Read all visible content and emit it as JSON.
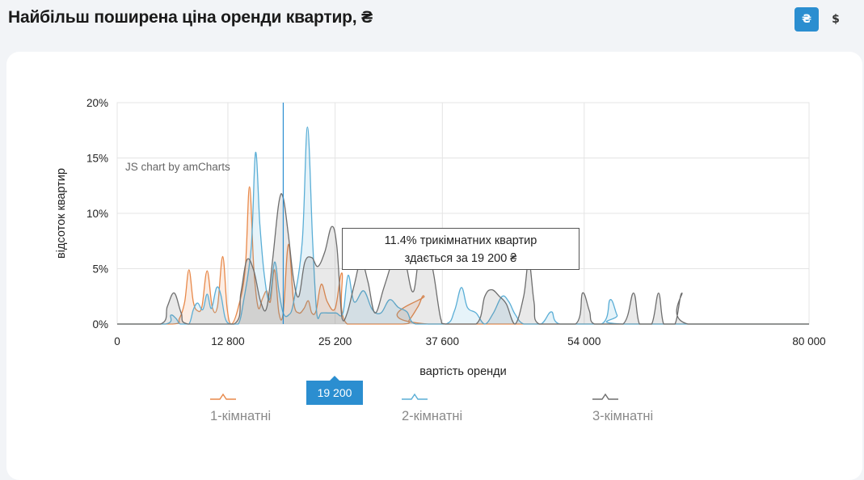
{
  "header": {
    "title": "Найбільш поширена ціна оренди квартир, ₴",
    "currency_buttons": [
      {
        "label": "₴",
        "active": true
      },
      {
        "label": "$",
        "active": false
      }
    ]
  },
  "watermark": "JS chart by amCharts",
  "tooltip": {
    "line1": "11.4% трикімнатних квартир",
    "line2": "здається за 19 200 ₴"
  },
  "cursor": {
    "x": 19200,
    "label": "19 200"
  },
  "chart_data": {
    "type": "area",
    "xlabel": "вартість оренди",
    "ylabel": "відсоток квартир",
    "xlim": [
      0,
      80000
    ],
    "ylim": [
      0,
      20
    ],
    "x_ticks": [
      0,
      12800,
      25200,
      37600,
      54000,
      80000
    ],
    "x_tick_labels": [
      "0",
      "12 800",
      "25 200",
      "37 600",
      "54 000",
      "80 000"
    ],
    "y_ticks": [
      0,
      5,
      10,
      15,
      20
    ],
    "y_tick_labels": [
      "0%",
      "5%",
      "10%",
      "15%",
      "20%"
    ],
    "grid": true,
    "legend_position": "bottom",
    "series": [
      {
        "name": "1-кімнатні",
        "color": "#e8894a",
        "points": [
          [
            0,
            0
          ],
          [
            6400,
            0
          ],
          [
            7200,
            0.5
          ],
          [
            7800,
            2
          ],
          [
            8300,
            4.9
          ],
          [
            8800,
            2
          ],
          [
            9300,
            1.2
          ],
          [
            9800,
            1.6
          ],
          [
            10400,
            4.8
          ],
          [
            11000,
            1.5
          ],
          [
            11600,
            1.6
          ],
          [
            12200,
            6.1
          ],
          [
            12700,
            1.5
          ],
          [
            13200,
            0
          ],
          [
            14000,
            1.5
          ],
          [
            14800,
            5
          ],
          [
            15300,
            12.4
          ],
          [
            15800,
            5
          ],
          [
            16300,
            1.5
          ],
          [
            16800,
            2.3
          ],
          [
            17300,
            3
          ],
          [
            17700,
            2
          ],
          [
            18200,
            4.9
          ],
          [
            18700,
            1
          ],
          [
            19200,
            1
          ],
          [
            19800,
            7.2
          ],
          [
            20400,
            2
          ],
          [
            21000,
            1
          ],
          [
            21600,
            1.4
          ],
          [
            22100,
            2.1
          ],
          [
            22500,
            1
          ],
          [
            23000,
            1.2
          ],
          [
            23600,
            3.6
          ],
          [
            24300,
            2
          ],
          [
            25200,
            1.4
          ],
          [
            26000,
            4.6
          ],
          [
            26600,
            0
          ],
          [
            33000,
            0
          ],
          [
            33800,
            0.4
          ],
          [
            34800,
            1.6
          ],
          [
            35500,
            2.5
          ],
          [
            36000,
            0
          ],
          [
            80000,
            0
          ]
        ]
      },
      {
        "name": "2-кімнатні",
        "color": "#5aaed6",
        "points": [
          [
            0,
            0
          ],
          [
            5600,
            0
          ],
          [
            6200,
            0.8
          ],
          [
            6800,
            0.5
          ],
          [
            7300,
            0
          ],
          [
            8300,
            0
          ],
          [
            8800,
            1.3
          ],
          [
            9300,
            1.9
          ],
          [
            9900,
            1.3
          ],
          [
            10400,
            2.7
          ],
          [
            10900,
            1.4
          ],
          [
            11500,
            3.3
          ],
          [
            12000,
            2.6
          ],
          [
            12500,
            0.5
          ],
          [
            13100,
            0
          ],
          [
            14000,
            0
          ],
          [
            14600,
            2
          ],
          [
            15500,
            7
          ],
          [
            16000,
            15.5
          ],
          [
            16500,
            9
          ],
          [
            17000,
            4.5
          ],
          [
            17600,
            2.2
          ],
          [
            18200,
            5.6
          ],
          [
            18700,
            3
          ],
          [
            19200,
            1
          ],
          [
            19800,
            0.8
          ],
          [
            20400,
            2
          ],
          [
            21400,
            7.5
          ],
          [
            22000,
            17.8
          ],
          [
            22600,
            7.5
          ],
          [
            23100,
            0.8
          ],
          [
            23600,
            1
          ],
          [
            24500,
            1
          ],
          [
            25300,
            1
          ],
          [
            26100,
            1
          ],
          [
            26700,
            4.4
          ],
          [
            27400,
            2
          ],
          [
            28500,
            3
          ],
          [
            29500,
            1.3
          ],
          [
            30500,
            1
          ],
          [
            31500,
            2.2
          ],
          [
            32500,
            1.5
          ],
          [
            33500,
            1.1
          ],
          [
            34500,
            0
          ],
          [
            38000,
            0
          ],
          [
            39000,
            1.2
          ],
          [
            39800,
            3.3
          ],
          [
            40500,
            1.5
          ],
          [
            41500,
            1
          ],
          [
            42500,
            0
          ],
          [
            43500,
            1
          ],
          [
            44500,
            2.5
          ],
          [
            45300,
            2
          ],
          [
            46000,
            0.9
          ],
          [
            47000,
            0
          ],
          [
            49000,
            0
          ],
          [
            50200,
            1.1
          ],
          [
            51200,
            0
          ],
          [
            56000,
            0
          ],
          [
            57000,
            2.2
          ],
          [
            57800,
            0.8
          ],
          [
            58500,
            0
          ],
          [
            80000,
            0
          ]
        ]
      },
      {
        "name": "3-кімнатні",
        "color": "#6e6e6e",
        "points": [
          [
            0,
            0
          ],
          [
            5000,
            0
          ],
          [
            5800,
            1.6
          ],
          [
            6600,
            2.8
          ],
          [
            7400,
            1
          ],
          [
            8200,
            0
          ],
          [
            13500,
            0
          ],
          [
            14300,
            2.8
          ],
          [
            15000,
            5.8
          ],
          [
            15800,
            4.8
          ],
          [
            16600,
            2
          ],
          [
            17300,
            1.5
          ],
          [
            18000,
            6
          ],
          [
            18700,
            11
          ],
          [
            19200,
            11.4
          ],
          [
            19800,
            8
          ],
          [
            20400,
            4
          ],
          [
            21000,
            2.5
          ],
          [
            21700,
            5.6
          ],
          [
            22500,
            6
          ],
          [
            23200,
            5.2
          ],
          [
            24000,
            6.5
          ],
          [
            24800,
            8.8
          ],
          [
            25400,
            7
          ],
          [
            26000,
            0.5
          ],
          [
            26600,
            1
          ],
          [
            27400,
            3.5
          ],
          [
            28200,
            5.7
          ],
          [
            29000,
            3.8
          ],
          [
            29800,
            1
          ],
          [
            30800,
            3.2
          ],
          [
            31800,
            5.8
          ],
          [
            32600,
            8.6
          ],
          [
            33400,
            5.4
          ],
          [
            34300,
            3
          ],
          [
            35200,
            8.4
          ],
          [
            35900,
            7
          ],
          [
            36600,
            4.5
          ],
          [
            37400,
            0.5
          ],
          [
            38000,
            0
          ],
          [
            41500,
            0
          ],
          [
            42500,
            2.5
          ],
          [
            43300,
            3.1
          ],
          [
            44200,
            2.5
          ],
          [
            45000,
            1.8
          ],
          [
            46000,
            0
          ],
          [
            47000,
            2.5
          ],
          [
            47600,
            5.7
          ],
          [
            48200,
            2
          ],
          [
            48800,
            0
          ],
          [
            53000,
            0
          ],
          [
            53800,
            2.8
          ],
          [
            54600,
            1.2
          ],
          [
            55200,
            0
          ],
          [
            58500,
            0
          ],
          [
            59700,
            2.8
          ],
          [
            60400,
            0
          ],
          [
            61800,
            0
          ],
          [
            62600,
            2.8
          ],
          [
            63200,
            0
          ],
          [
            64500,
            0
          ],
          [
            65300,
            2.8
          ],
          [
            66000,
            0
          ],
          [
            80000,
            0
          ]
        ]
      }
    ]
  }
}
